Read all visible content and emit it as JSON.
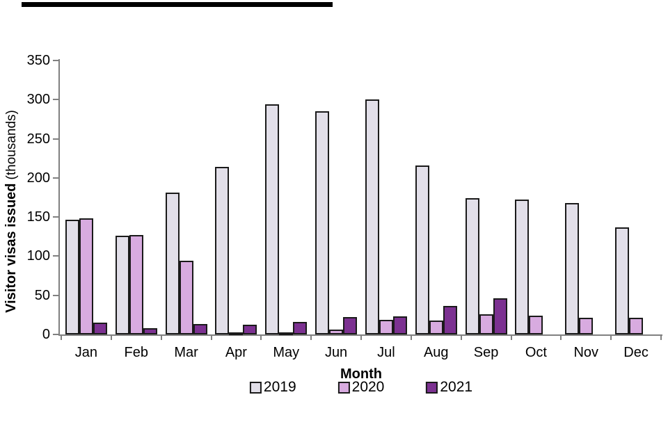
{
  "decoration": {
    "top_bar_color": "#000000"
  },
  "chart_data": {
    "type": "bar",
    "title": "",
    "xlabel": "Month",
    "ylabel_bold": "Visitor visas issued",
    "ylabel_suffix": "(thousands)",
    "categories": [
      "Jan",
      "Feb",
      "Mar",
      "Apr",
      "May",
      "Jun",
      "Jul",
      "Aug",
      "Sep",
      "Oct",
      "Nov",
      "Dec"
    ],
    "series": [
      {
        "name": "2019",
        "color": "#e2dfe9",
        "values": [
          147,
          126,
          181,
          214,
          294,
          285,
          300,
          216,
          174,
          172,
          168,
          137
        ]
      },
      {
        "name": "2020",
        "color": "#d8abe0",
        "values": [
          148,
          127,
          94,
          1,
          1,
          6,
          19,
          18,
          26,
          24,
          21,
          21
        ]
      },
      {
        "name": "2021",
        "color": "#7c3191",
        "values": [
          15,
          8,
          13,
          12,
          16,
          22,
          23,
          36,
          46,
          0,
          0,
          0
        ]
      }
    ],
    "ylim": [
      0,
      350
    ],
    "yticks": [
      0,
      50,
      100,
      150,
      200,
      250,
      300,
      350
    ],
    "grid": false,
    "legend_position": "bottom",
    "bar_outline_color": "#1a1a1a",
    "axis_color": "#808080",
    "text_color": "#000000"
  }
}
